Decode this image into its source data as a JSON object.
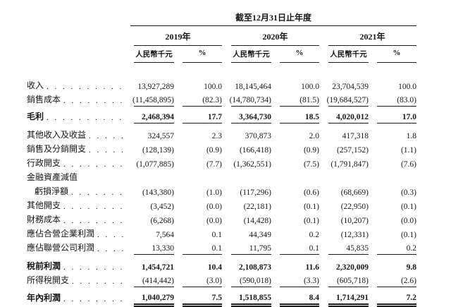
{
  "page": {
    "background_color": "#ffffff",
    "text_color": "#161616",
    "rule_color": "#1c1c1c"
  },
  "table": {
    "period_header": "截至12月31日止年度",
    "years": [
      {
        "label": "2019年"
      },
      {
        "label": "2020年"
      },
      {
        "label": "2021年"
      }
    ],
    "subheaders": {
      "amount": "人民幣千元",
      "percent": "%"
    },
    "rows": [
      {
        "label": "收入",
        "bold": false,
        "indent": false,
        "leader_dots": true,
        "underline": "none",
        "gap_before": 0,
        "values": [
          "13,927,289",
          "100.0",
          "18,145,464",
          "100.0",
          "23,704,539",
          "100.0"
        ]
      },
      {
        "label": "銷售成本",
        "bold": false,
        "indent": false,
        "leader_dots": true,
        "underline": "single",
        "gap_before": 0,
        "values": [
          "(11,458,895)",
          "(82.3)",
          "(14,780,734)",
          "(81.5)",
          "(19,684,527)",
          "(83.0)"
        ]
      },
      {
        "label": "毛利",
        "bold": true,
        "indent": false,
        "leader_dots": true,
        "underline": "single",
        "gap_before": 4,
        "values": [
          "2,468,394",
          "17.7",
          "3,364,730",
          "18.5",
          "4,020,012",
          "17.0"
        ]
      },
      {
        "label": "其他收入及收益",
        "bold": false,
        "indent": false,
        "leader_dots": true,
        "underline": "none",
        "gap_before": 6,
        "values": [
          "324,557",
          "2.3",
          "370,873",
          "2.0",
          "417,318",
          "1.8"
        ]
      },
      {
        "label": "銷售及分銷開支",
        "bold": false,
        "indent": false,
        "leader_dots": true,
        "underline": "none",
        "gap_before": 0,
        "values": [
          "(128,139)",
          "(0.9)",
          "(166,418)",
          "(0.9)",
          "(257,152)",
          "(1.1)"
        ]
      },
      {
        "label": "行政開支",
        "bold": false,
        "indent": false,
        "leader_dots": true,
        "underline": "none",
        "gap_before": 0,
        "values": [
          "(1,077,885)",
          "(7.7)",
          "(1,362,551)",
          "(7.5)",
          "(1,791,847)",
          "(7.6)"
        ]
      },
      {
        "label": "金融資產減值",
        "bold": false,
        "indent": false,
        "leader_dots": false,
        "underline": "none",
        "gap_before": 0,
        "values": null
      },
      {
        "label": "虧損淨額",
        "bold": false,
        "indent": true,
        "leader_dots": true,
        "underline": "none",
        "gap_before": 0,
        "values": [
          "(143,380)",
          "(1.0)",
          "(117,296)",
          "(0.6)",
          "(68,669)",
          "(0.3)"
        ]
      },
      {
        "label": "其他開支",
        "bold": false,
        "indent": false,
        "leader_dots": true,
        "underline": "none",
        "gap_before": 0,
        "values": [
          "(3,452)",
          "(0.0)",
          "(22,181)",
          "(0.1)",
          "(22,950)",
          "(0.1)"
        ]
      },
      {
        "label": "財務成本",
        "bold": false,
        "indent": false,
        "leader_dots": true,
        "underline": "none",
        "gap_before": 0,
        "values": [
          "(6,268)",
          "(0.0)",
          "(14,428)",
          "(0.1)",
          "(10,207)",
          "(0.0)"
        ]
      },
      {
        "label": "應佔合營企業利潤",
        "bold": false,
        "indent": false,
        "leader_dots": true,
        "underline": "none",
        "gap_before": 0,
        "values": [
          "7,564",
          "0.1",
          "44,349",
          "0.2",
          "(12,331)",
          "(0.1)"
        ]
      },
      {
        "label": "應佔聯營公司利潤",
        "bold": false,
        "indent": false,
        "leader_dots": true,
        "underline": "single",
        "gap_before": 0,
        "values": [
          "13,330",
          "0.1",
          "11,795",
          "0.1",
          "45,835",
          "0.2"
        ]
      },
      {
        "label": "稅前利潤",
        "bold": true,
        "indent": false,
        "leader_dots": true,
        "underline": "none",
        "gap_before": 6,
        "values": [
          "1,454,721",
          "10.4",
          "2,108,873",
          "11.6",
          "2,320,009",
          "9.8"
        ]
      },
      {
        "label": "所得稅開支",
        "bold": false,
        "indent": false,
        "leader_dots": true,
        "underline": "single",
        "gap_before": 0,
        "values": [
          "(414,442)",
          "(3.0)",
          "(590,018)",
          "(3.3)",
          "(605,718)",
          "(2.6)"
        ]
      },
      {
        "label": "年內利潤",
        "bold": true,
        "indent": false,
        "leader_dots": true,
        "underline": "double",
        "gap_before": 5,
        "values": [
          "1,040,279",
          "7.5",
          "1,518,855",
          "8.4",
          "1,714,291",
          "7.2"
        ]
      }
    ]
  }
}
